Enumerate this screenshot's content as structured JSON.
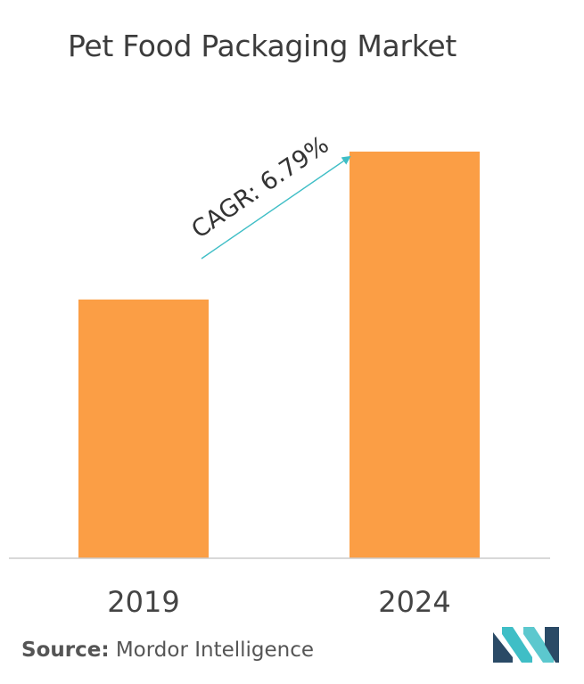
{
  "chart_data": {
    "type": "bar",
    "title": "Pet Food Packaging Market",
    "categories": [
      "2019",
      "2024"
    ],
    "values": [
      7.0,
      11.0
    ],
    "ylim": [
      0,
      11.0
    ],
    "grid": false,
    "annotation": "CAGR: 6.79%"
  },
  "source": {
    "label": "Source:",
    "text": " Mordor Intelligence"
  },
  "colors": {
    "bar": "#fb9e45",
    "arrow": "#3fbec6",
    "axis": "#cccccc",
    "logo_dark": "#2a4a66",
    "logo_teal": "#3fbec6"
  },
  "icons": {
    "logo": "mordor-intelligence-logo-icon"
  }
}
